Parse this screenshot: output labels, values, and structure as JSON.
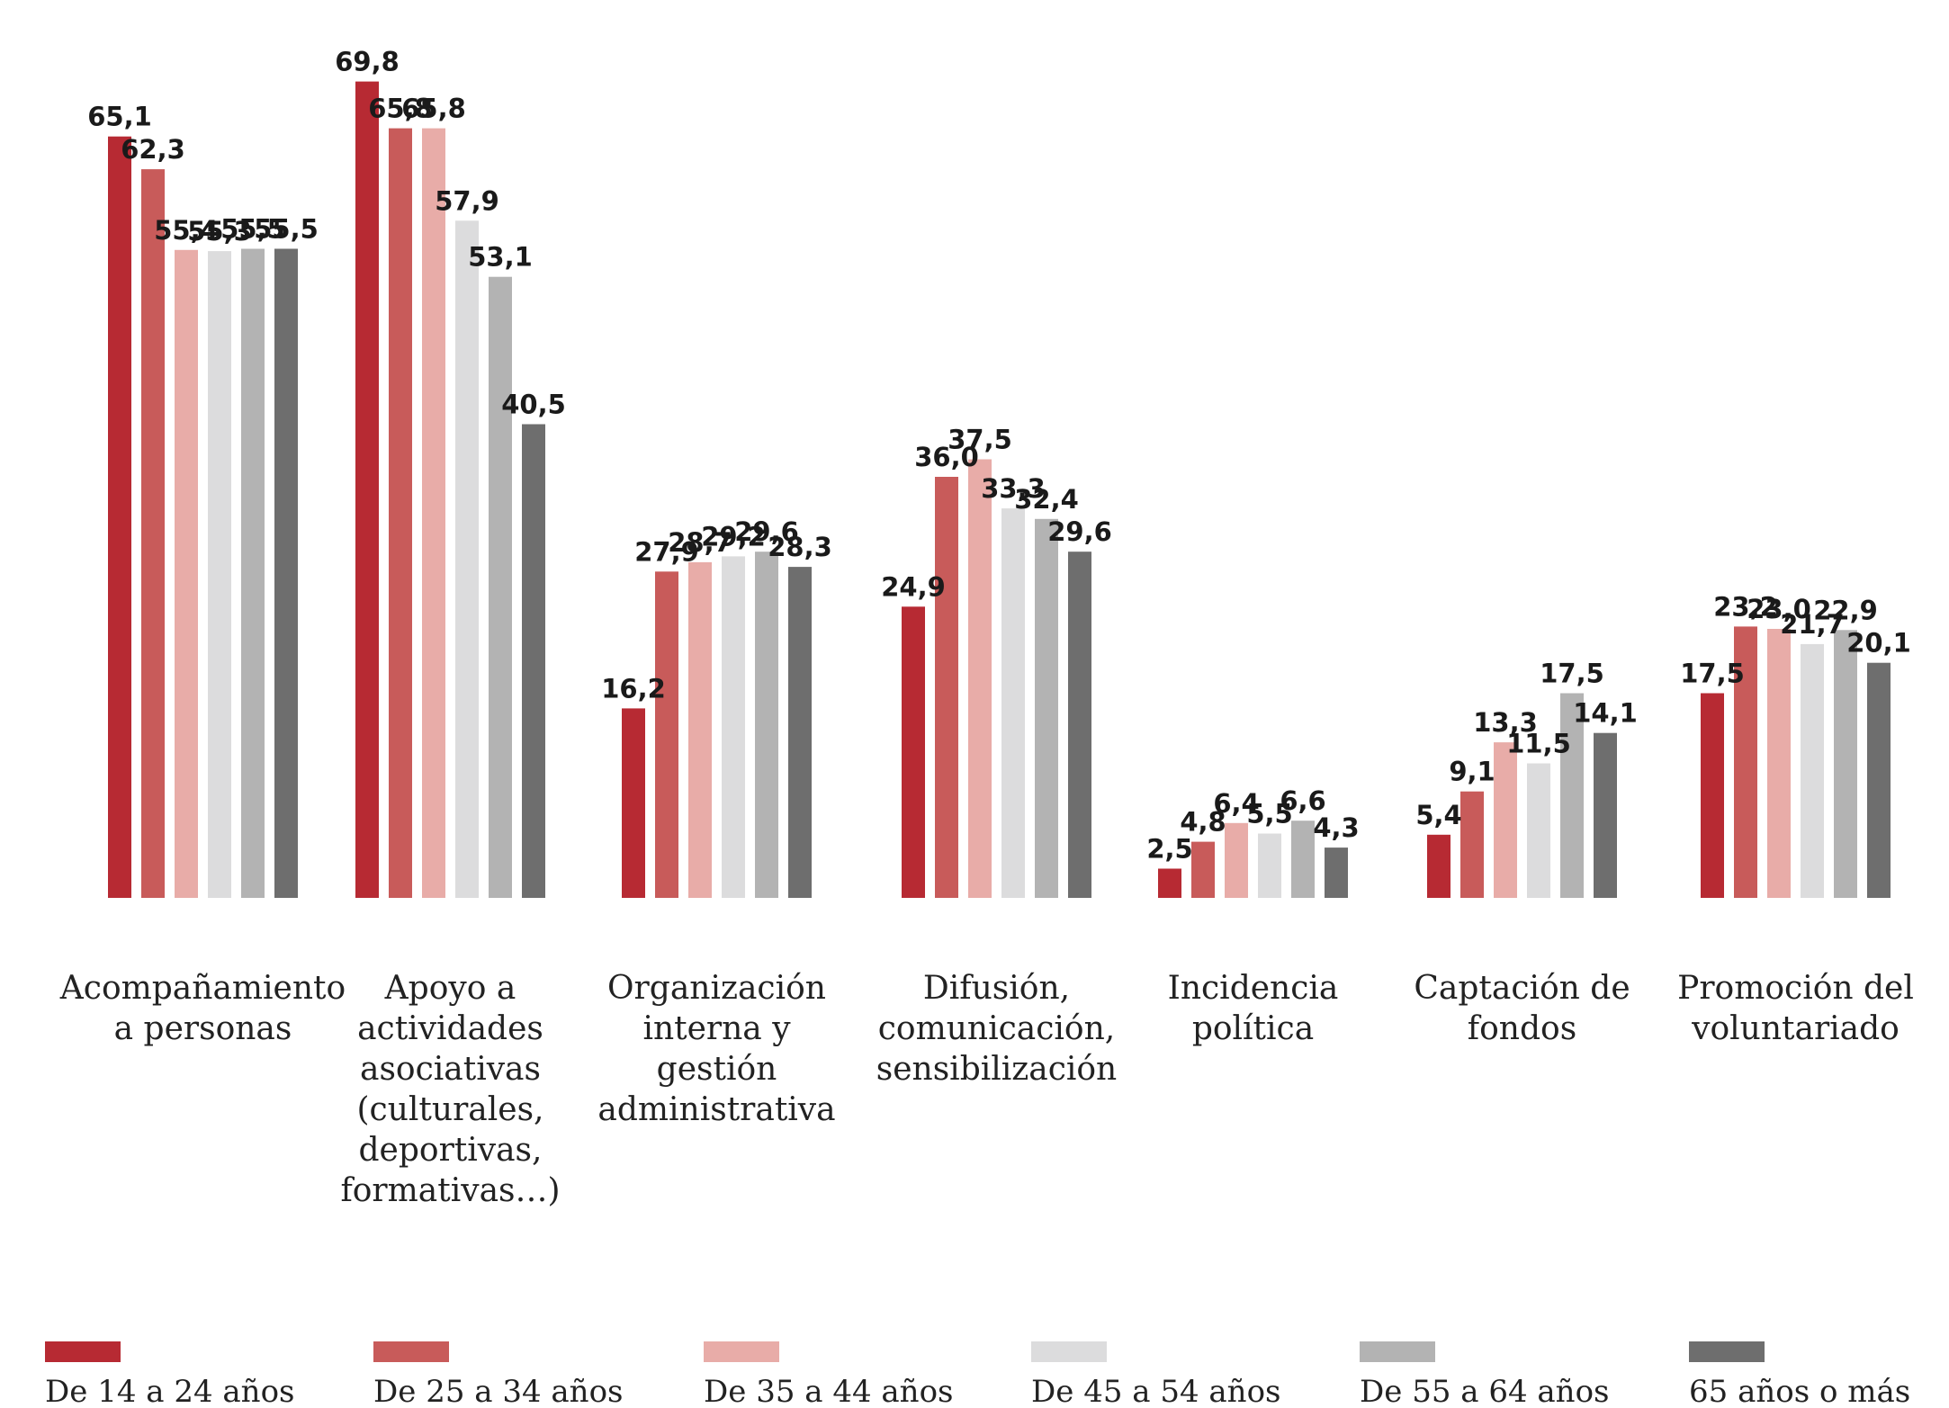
{
  "chart_data": {
    "type": "bar",
    "categories": [
      [
        "Acompañamiento",
        "a personas"
      ],
      [
        "Apoyo a",
        "actividades",
        "asociativas",
        "(culturales,",
        "deportivas,",
        "formativas…)"
      ],
      [
        "Organización",
        "interna y",
        "gestión",
        "administrativa"
      ],
      [
        "Difusión,",
        "comunicación,",
        "sensibilización"
      ],
      [
        "Incidencia",
        "política"
      ],
      [
        "Captación de",
        "fondos"
      ],
      [
        "Promoción del",
        "voluntariado"
      ]
    ],
    "series": [
      {
        "name": "De 14 a 24 años",
        "color": "#b72a33",
        "values": [
          65.1,
          69.8,
          16.2,
          24.9,
          2.5,
          5.4,
          17.5
        ],
        "labels": [
          "65,1",
          "69,8",
          "16,2",
          "24,9",
          "2,5",
          "5,4",
          "17,5"
        ]
      },
      {
        "name": "De 25 a 34 años",
        "color": "#c85b5a",
        "values": [
          62.3,
          65.8,
          27.9,
          36.0,
          4.8,
          9.1,
          23.2
        ],
        "labels": [
          "62,3",
          "65,8",
          "27,9",
          "36,0",
          "4,8",
          "9,1",
          "23,2"
        ]
      },
      {
        "name": "De 35 a 44 años",
        "color": "#e8aca8",
        "values": [
          55.4,
          65.8,
          28.7,
          37.5,
          6.4,
          13.3,
          23.0
        ],
        "labels": [
          "55,4",
          "65,8",
          "28,7",
          "37,5",
          "6,4",
          "13,3",
          "23,0"
        ]
      },
      {
        "name": "De 45 a 54 años",
        "color": "#dcdcdd",
        "values": [
          55.3,
          57.9,
          29.2,
          33.3,
          5.5,
          11.5,
          21.7
        ],
        "labels": [
          "55,3",
          "57,9",
          "29,2",
          "33,3",
          "5,5",
          "11,5",
          "21,7"
        ]
      },
      {
        "name": "De 55 a 64 años",
        "color": "#b3b3b3",
        "values": [
          55.5,
          53.1,
          29.6,
          32.4,
          6.6,
          17.5,
          22.9
        ],
        "labels": [
          "55,5",
          "53,1",
          "29,6",
          "32,4",
          "6,6",
          "17,5",
          "22,9"
        ]
      },
      {
        "name": "65 años o más",
        "color": "#6e6e6e",
        "values": [
          55.5,
          40.5,
          28.3,
          29.6,
          4.3,
          14.1,
          20.1
        ],
        "labels": [
          "55,5",
          "40,5",
          "28,3",
          "29,6",
          "4,3",
          "14,1",
          "20,1"
        ]
      }
    ],
    "ylim": [
      0,
      72
    ],
    "grid": false,
    "legend_position": "bottom"
  }
}
